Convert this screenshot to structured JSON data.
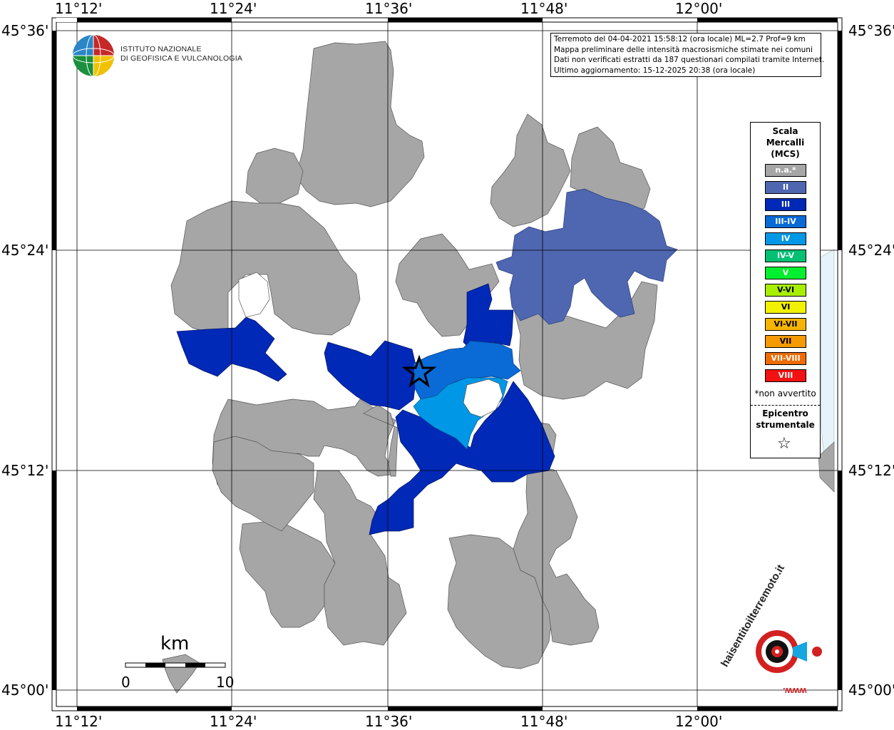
{
  "coords": {
    "top": [
      "11°12'",
      "11°24'",
      "11°36'",
      "11°48'",
      "12°00'"
    ],
    "bottom": [
      "11°12'",
      "11°24'",
      "11°36'",
      "11°48'",
      "12°00'"
    ],
    "left": [
      "45°36'",
      "45°24'",
      "45°12'",
      "45°00'"
    ],
    "right": [
      "45°36'",
      "45°24'",
      "45°12'",
      "45°00'"
    ]
  },
  "org": {
    "line1": "ISTITUTO NAZIONALE",
    "line2": "DI GEOFISICA E VULCANOLOGIA"
  },
  "info": {
    "line1": "Terremoto del 04-04-2021 15:58:12 (ora locale) ML=2.7 Prof=9 km",
    "line2": "Mappa preliminare delle intensità macrosismiche stimate nei comuni",
    "line3": "Dati non verificati estratti da 187 questionari compilati tramite Internet.",
    "line4": "Ultimo aggiornamento: 15-12-2025 20:38 (ora locale)"
  },
  "legend": {
    "title1": "Scala",
    "title2": "Mercalli",
    "title3": "(MCS)",
    "items": [
      {
        "label": "n.a.*",
        "color": "#a6a6a6"
      },
      {
        "label": "II",
        "color": "#4f67b0"
      },
      {
        "label": "III",
        "color": "#0029b8"
      },
      {
        "label": "III-IV",
        "color": "#0a6ad6"
      },
      {
        "label": "IV",
        "color": "#0097e6"
      },
      {
        "label": "IV-V",
        "color": "#00c074"
      },
      {
        "label": "V",
        "color": "#00ef2e"
      },
      {
        "label": "V-VI",
        "color": "#a8ee00"
      },
      {
        "label": "VI",
        "color": "#f2f200"
      },
      {
        "label": "VI-VII",
        "color": "#f5b400"
      },
      {
        "label": "VII",
        "color": "#f59a00"
      },
      {
        "label": "VII-VIII",
        "color": "#ef6b00"
      },
      {
        "label": "VIII",
        "color": "#f21212"
      }
    ],
    "not_felt": "*non avvertito",
    "epicenter1": "Epicentro",
    "epicenter2": "strumentale",
    "star": "☆"
  },
  "scalebar": {
    "unit": "km",
    "min": "0",
    "max": "10"
  },
  "brand": {
    "text": "haisentitoilterremoto.it",
    "www": "www."
  },
  "colors": {
    "na": "#a6a6a6",
    "II": "#4f67b0",
    "III": "#0029b8",
    "III-IV": "#0a6ad6",
    "IV": "#0097e6",
    "sea": "#e6f3fb"
  }
}
